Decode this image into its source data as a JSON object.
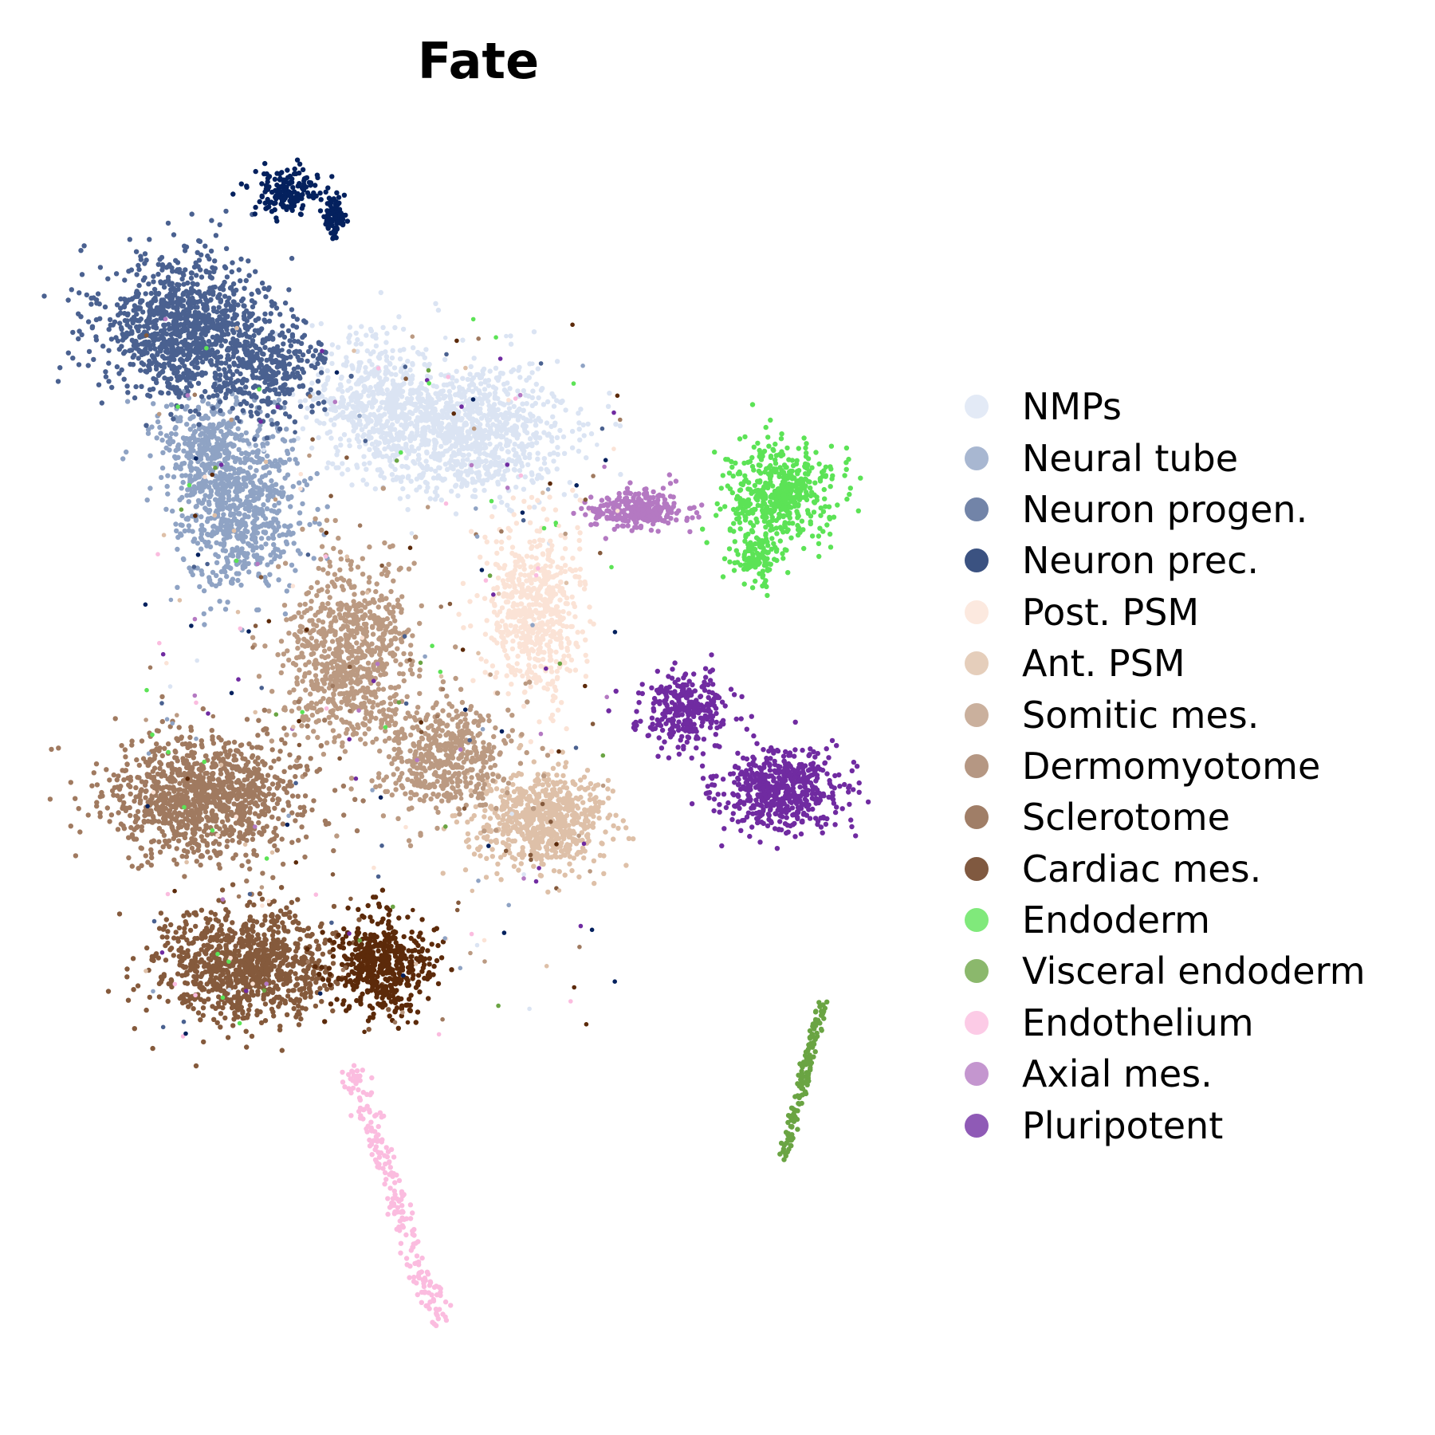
{
  "chart_data": {
    "type": "scatter",
    "title": "Fate",
    "xlabel": "",
    "ylabel": "",
    "axes_visible": false,
    "grid": false,
    "legend_position": "right",
    "series": [
      {
        "name": "NMPs",
        "color": "#dbe4f3"
      },
      {
        "name": "Neural tube",
        "color": "#8fa3c4"
      },
      {
        "name": "Neuron progen.",
        "color": "#4a6190"
      },
      {
        "name": "Neuron prec.",
        "color": "#04215e"
      },
      {
        "name": "Post. PSM",
        "color": "#fbe3d6"
      },
      {
        "name": "Ant. PSM",
        "color": "#dec0a8"
      },
      {
        "name": "Somitic mes.",
        "color": "#bb9a82"
      },
      {
        "name": "Dermomyotome",
        "color": "#a07a60"
      },
      {
        "name": "Sclerotome",
        "color": "#855a3c"
      },
      {
        "name": "Cardiac mes.",
        "color": "#5c2a0a"
      },
      {
        "name": "Endoderm",
        "color": "#5ce356"
      },
      {
        "name": "Visceral endoderm",
        "color": "#6aa443"
      },
      {
        "name": "Endothelium",
        "color": "#fbbcdf"
      },
      {
        "name": "Axial mes.",
        "color": "#b479c2"
      },
      {
        "name": "Pluripotent",
        "color": "#702ba1"
      }
    ]
  }
}
